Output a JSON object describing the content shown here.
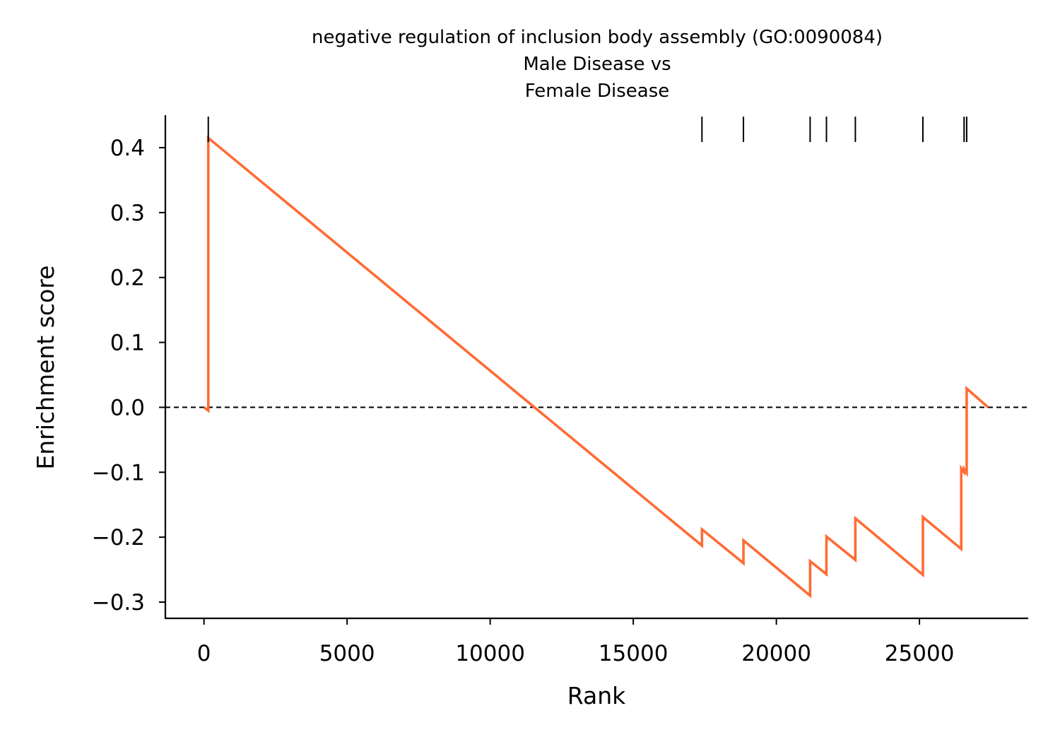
{
  "chart_data": {
    "type": "line",
    "title": [
      "negative regulation of inclusion body assembly (GO:0090084)",
      "Male Disease vs",
      "Female Disease"
    ],
    "xlabel": "Rank",
    "ylabel": "Enrichment score",
    "xlim": [
      -1350,
      28800
    ],
    "ylim": [
      -0.325,
      0.45
    ],
    "xticks": [
      0,
      5000,
      10000,
      15000,
      20000,
      25000
    ],
    "xtick_labels": [
      "0",
      "5000",
      "10000",
      "15000",
      "20000",
      "25000"
    ],
    "yticks": [
      0.4,
      0.3,
      0.2,
      0.1,
      0.0,
      -0.1,
      -0.2,
      -0.3
    ],
    "ytick_labels": [
      "0.4",
      "0.3",
      "0.2",
      "0.1",
      "0.0",
      "−0.1",
      "−0.2",
      "−0.3"
    ],
    "grid": false,
    "baseline": 0.0,
    "series": [
      {
        "color": "#ff6b35",
        "x": [
          0,
          150,
          150,
          17400,
          17400,
          18850,
          18850,
          21180,
          21180,
          21750,
          21750,
          22760,
          22760,
          25120,
          25120,
          26460,
          26460,
          26560,
          26560,
          26650,
          26650,
          27400
        ],
        "y": [
          0.0,
          -0.005,
          0.415,
          -0.213,
          -0.188,
          -0.24,
          -0.205,
          -0.29,
          -0.237,
          -0.257,
          -0.199,
          -0.235,
          -0.171,
          -0.258,
          -0.169,
          -0.218,
          -0.094,
          -0.1,
          -0.095,
          -0.101,
          0.029,
          0.0
        ]
      }
    ],
    "hit_ranks": [
      150,
      17400,
      18850,
      21180,
      21750,
      22760,
      25120,
      26560,
      26650
    ],
    "colors": {
      "line": "#ff6b35",
      "hits": "#000000",
      "baseline": "#000000"
    }
  }
}
